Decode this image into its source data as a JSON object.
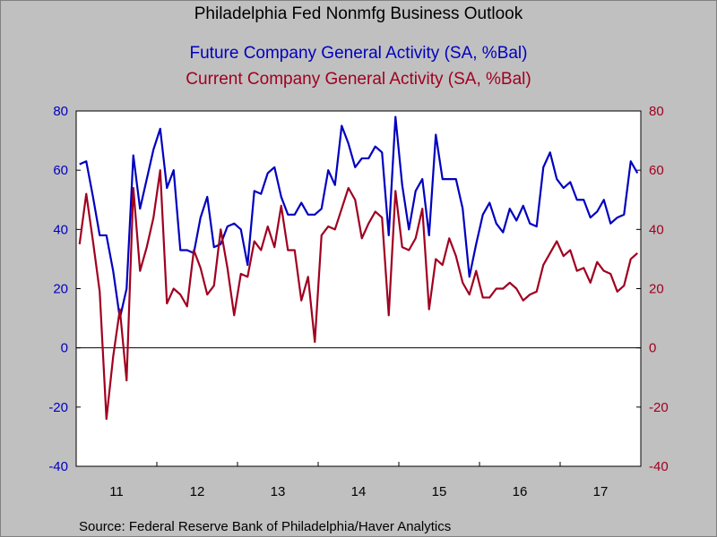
{
  "chart_data": {
    "type": "line",
    "title": "Philadelphia Fed Nonmfg Business Outlook",
    "source": "Source:  Federal Reserve Bank of Philadelphia/Haver Analytics",
    "ylim": [
      -40,
      80
    ],
    "yticks": [
      "80",
      "60",
      "40",
      "20",
      "0",
      "-20",
      "-40"
    ],
    "ytick_values": [
      80,
      60,
      40,
      20,
      0,
      -20,
      -40
    ],
    "xtick_labels": [
      "11",
      "12",
      "13",
      "14",
      "15",
      "16",
      "17"
    ],
    "x_start": "2011-01",
    "x_end": "2017-12",
    "grid": false,
    "legend": "top-center",
    "series": [
      {
        "name": "Future Company General Activity (SA, %Bal)",
        "color": "#0000c0",
        "axis": "left",
        "values": [
          62,
          63,
          51,
          38,
          38,
          26,
          10,
          20,
          65,
          47,
          57,
          67,
          74,
          54,
          60,
          33,
          33,
          32,
          44,
          51,
          34,
          35,
          41,
          42,
          40,
          28,
          53,
          52,
          59,
          61,
          51,
          45,
          45,
          49,
          45,
          45,
          47,
          60,
          55,
          75,
          69,
          61,
          64,
          64,
          68,
          66,
          38,
          78,
          55,
          40,
          53,
          57,
          38,
          72,
          57,
          57,
          57,
          47,
          24,
          35,
          45,
          49,
          42,
          39,
          47,
          43,
          48,
          42,
          41,
          61,
          66,
          57,
          54,
          56,
          50,
          50,
          44,
          46,
          50,
          42,
          44,
          45,
          63,
          59
        ]
      },
      {
        "name": "Current Company General Activity (SA, %Bal)",
        "color": "#a00020",
        "axis": "right",
        "values": [
          35,
          52,
          36,
          19,
          -24,
          -3,
          13,
          -11,
          54,
          26,
          34,
          44,
          60,
          15,
          20,
          18,
          14,
          33,
          27,
          18,
          21,
          40,
          27,
          11,
          25,
          24,
          36,
          33,
          41,
          34,
          48,
          33,
          33,
          16,
          24,
          2,
          38,
          41,
          40,
          47,
          54,
          50,
          37,
          42,
          46,
          44,
          11,
          53,
          34,
          33,
          37,
          47,
          13,
          30,
          28,
          37,
          31,
          22,
          18,
          26,
          17,
          17,
          20,
          20,
          22,
          20,
          16,
          18,
          19,
          28,
          32,
          36,
          31,
          33,
          26,
          27,
          22,
          29,
          26,
          25,
          19,
          21,
          30,
          32
        ]
      }
    ]
  }
}
